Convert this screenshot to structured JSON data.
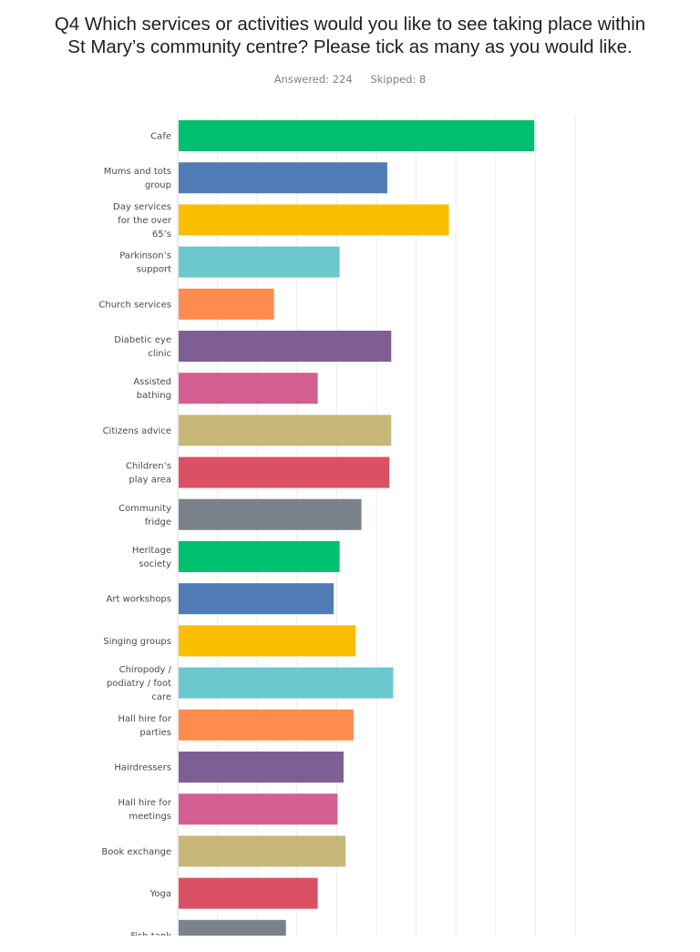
{
  "title": {
    "line1": "Q4 Which services or activities would you like to see taking place within",
    "line2": "St Mary’s community centre? Please tick as many as you would like."
  },
  "answered_label": "Answered: 224",
  "skipped_label": "Skipped: 8",
  "chart_data": {
    "type": "bar",
    "orientation": "horizontal",
    "title": "Q4 Which services or activities would you like to see taking place within St Mary’s community centre? Please tick as many as you would like.",
    "xlim": [
      0,
      100
    ],
    "grid": true,
    "categories": [
      [
        "Cafe"
      ],
      [
        "Mums and tots",
        "group"
      ],
      [
        "Day services",
        "for the over",
        "65’s"
      ],
      [
        "Parkinson’s",
        "support"
      ],
      [
        "Church services"
      ],
      [
        "Diabetic eye",
        "clinic"
      ],
      [
        "Assisted",
        "bathing"
      ],
      [
        "Citizens advice"
      ],
      [
        "Children’s",
        "play area"
      ],
      [
        "Community",
        "fridge"
      ],
      [
        "Heritage",
        "society"
      ],
      [
        "Art workshops"
      ],
      [
        "Singing groups"
      ],
      [
        "Chiropody /",
        "podiatry / foot",
        "care"
      ],
      [
        "Hall hire for",
        "parties"
      ],
      [
        "Hairdressers"
      ],
      [
        "Hall hire for",
        "meetings"
      ],
      [
        "Book exchange"
      ],
      [
        "Yoga"
      ],
      [
        "Fish tank"
      ]
    ],
    "values": [
      89.5,
      52.5,
      68,
      40.5,
      24,
      53.5,
      35,
      53.5,
      53,
      46,
      40.5,
      39,
      44.5,
      54,
      44,
      41.5,
      40,
      42,
      35,
      27
    ],
    "colors": [
      "#00bf6f",
      "#507cb6",
      "#f9be00",
      "#6bc8cd",
      "#ff8b4f",
      "#7f5e95",
      "#d25f90",
      "#c7b879",
      "#dc5063",
      "#7b8289"
    ]
  }
}
